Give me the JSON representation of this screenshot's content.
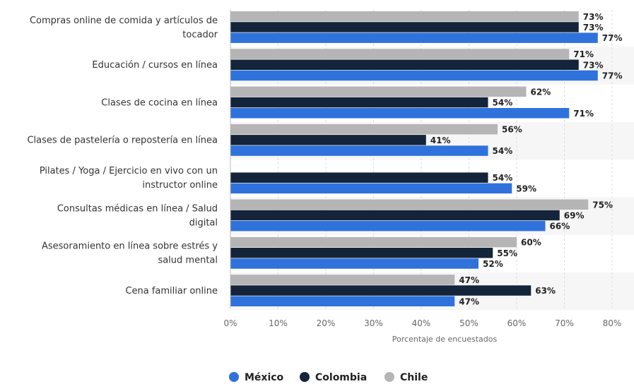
{
  "chart_data": {
    "type": "bar",
    "orientation": "horizontal",
    "categories": [
      [
        "Compras online de comida y artículos de",
        "tocador"
      ],
      [
        "Educación / cursos en línea"
      ],
      [
        "Clases de cocina en línea"
      ],
      [
        "Clases de pastelería o repostería en línea"
      ],
      [
        "Pilates / Yoga / Ejercicio en vivo con un",
        "instructor online"
      ],
      [
        "Consultas médicas en línea / Salud",
        "digital"
      ],
      [
        "Asesoramiento en línea sobre estrés y",
        "salud mental"
      ],
      [
        "Cena familiar online"
      ]
    ],
    "series": [
      {
        "name": "Chile",
        "color": "#b5b5b5",
        "values": [
          73,
          71,
          62,
          56,
          null,
          75,
          60,
          47
        ]
      },
      {
        "name": "Colombia",
        "color": "#14243a",
        "values": [
          73,
          73,
          54,
          41,
          54,
          69,
          55,
          63
        ]
      },
      {
        "name": "México",
        "color": "#2f72dc",
        "values": [
          77,
          77,
          71,
          54,
          59,
          66,
          52,
          47
        ]
      }
    ],
    "legend_order": [
      "México",
      "Colombia",
      "Chile"
    ],
    "value_suffix": "%",
    "xlabel": "Porcentaje de encuestados",
    "xlim": [
      0,
      80
    ],
    "xticks": [
      "0%",
      "10%",
      "20%",
      "30%",
      "40%",
      "50%",
      "60%",
      "70%",
      "80%"
    ],
    "grid": true,
    "legend_position": "bottom"
  }
}
